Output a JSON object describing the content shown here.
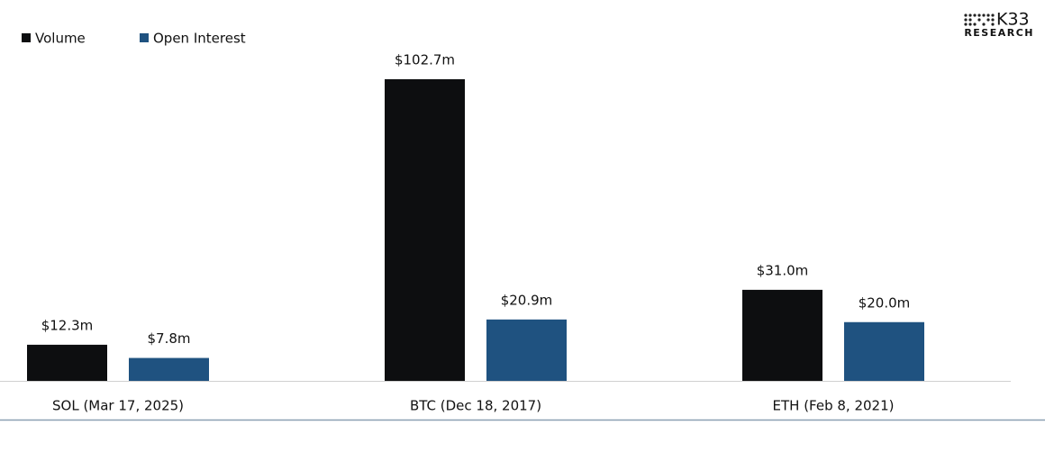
{
  "logo": {
    "name": "K33",
    "subtitle": "RESEARCH"
  },
  "chart_data": {
    "type": "bar",
    "categories": [
      "SOL (Mar 17, 2025)",
      "BTC (Dec 18, 2017)",
      "ETH (Feb 8, 2021)"
    ],
    "series": [
      {
        "name": "Volume",
        "color": "#0d0e10",
        "values": [
          12.3,
          102.7,
          31.0
        ],
        "value_labels": [
          "$12.3m",
          "$102.7m",
          "$31.0m"
        ]
      },
      {
        "name": "Open Interest",
        "color": "#1f5280",
        "values": [
          7.8,
          20.9,
          20.0
        ],
        "value_labels": [
          "$7.8m",
          "$20.9m",
          "$20.0m"
        ]
      }
    ],
    "legend": "top-left"
  }
}
